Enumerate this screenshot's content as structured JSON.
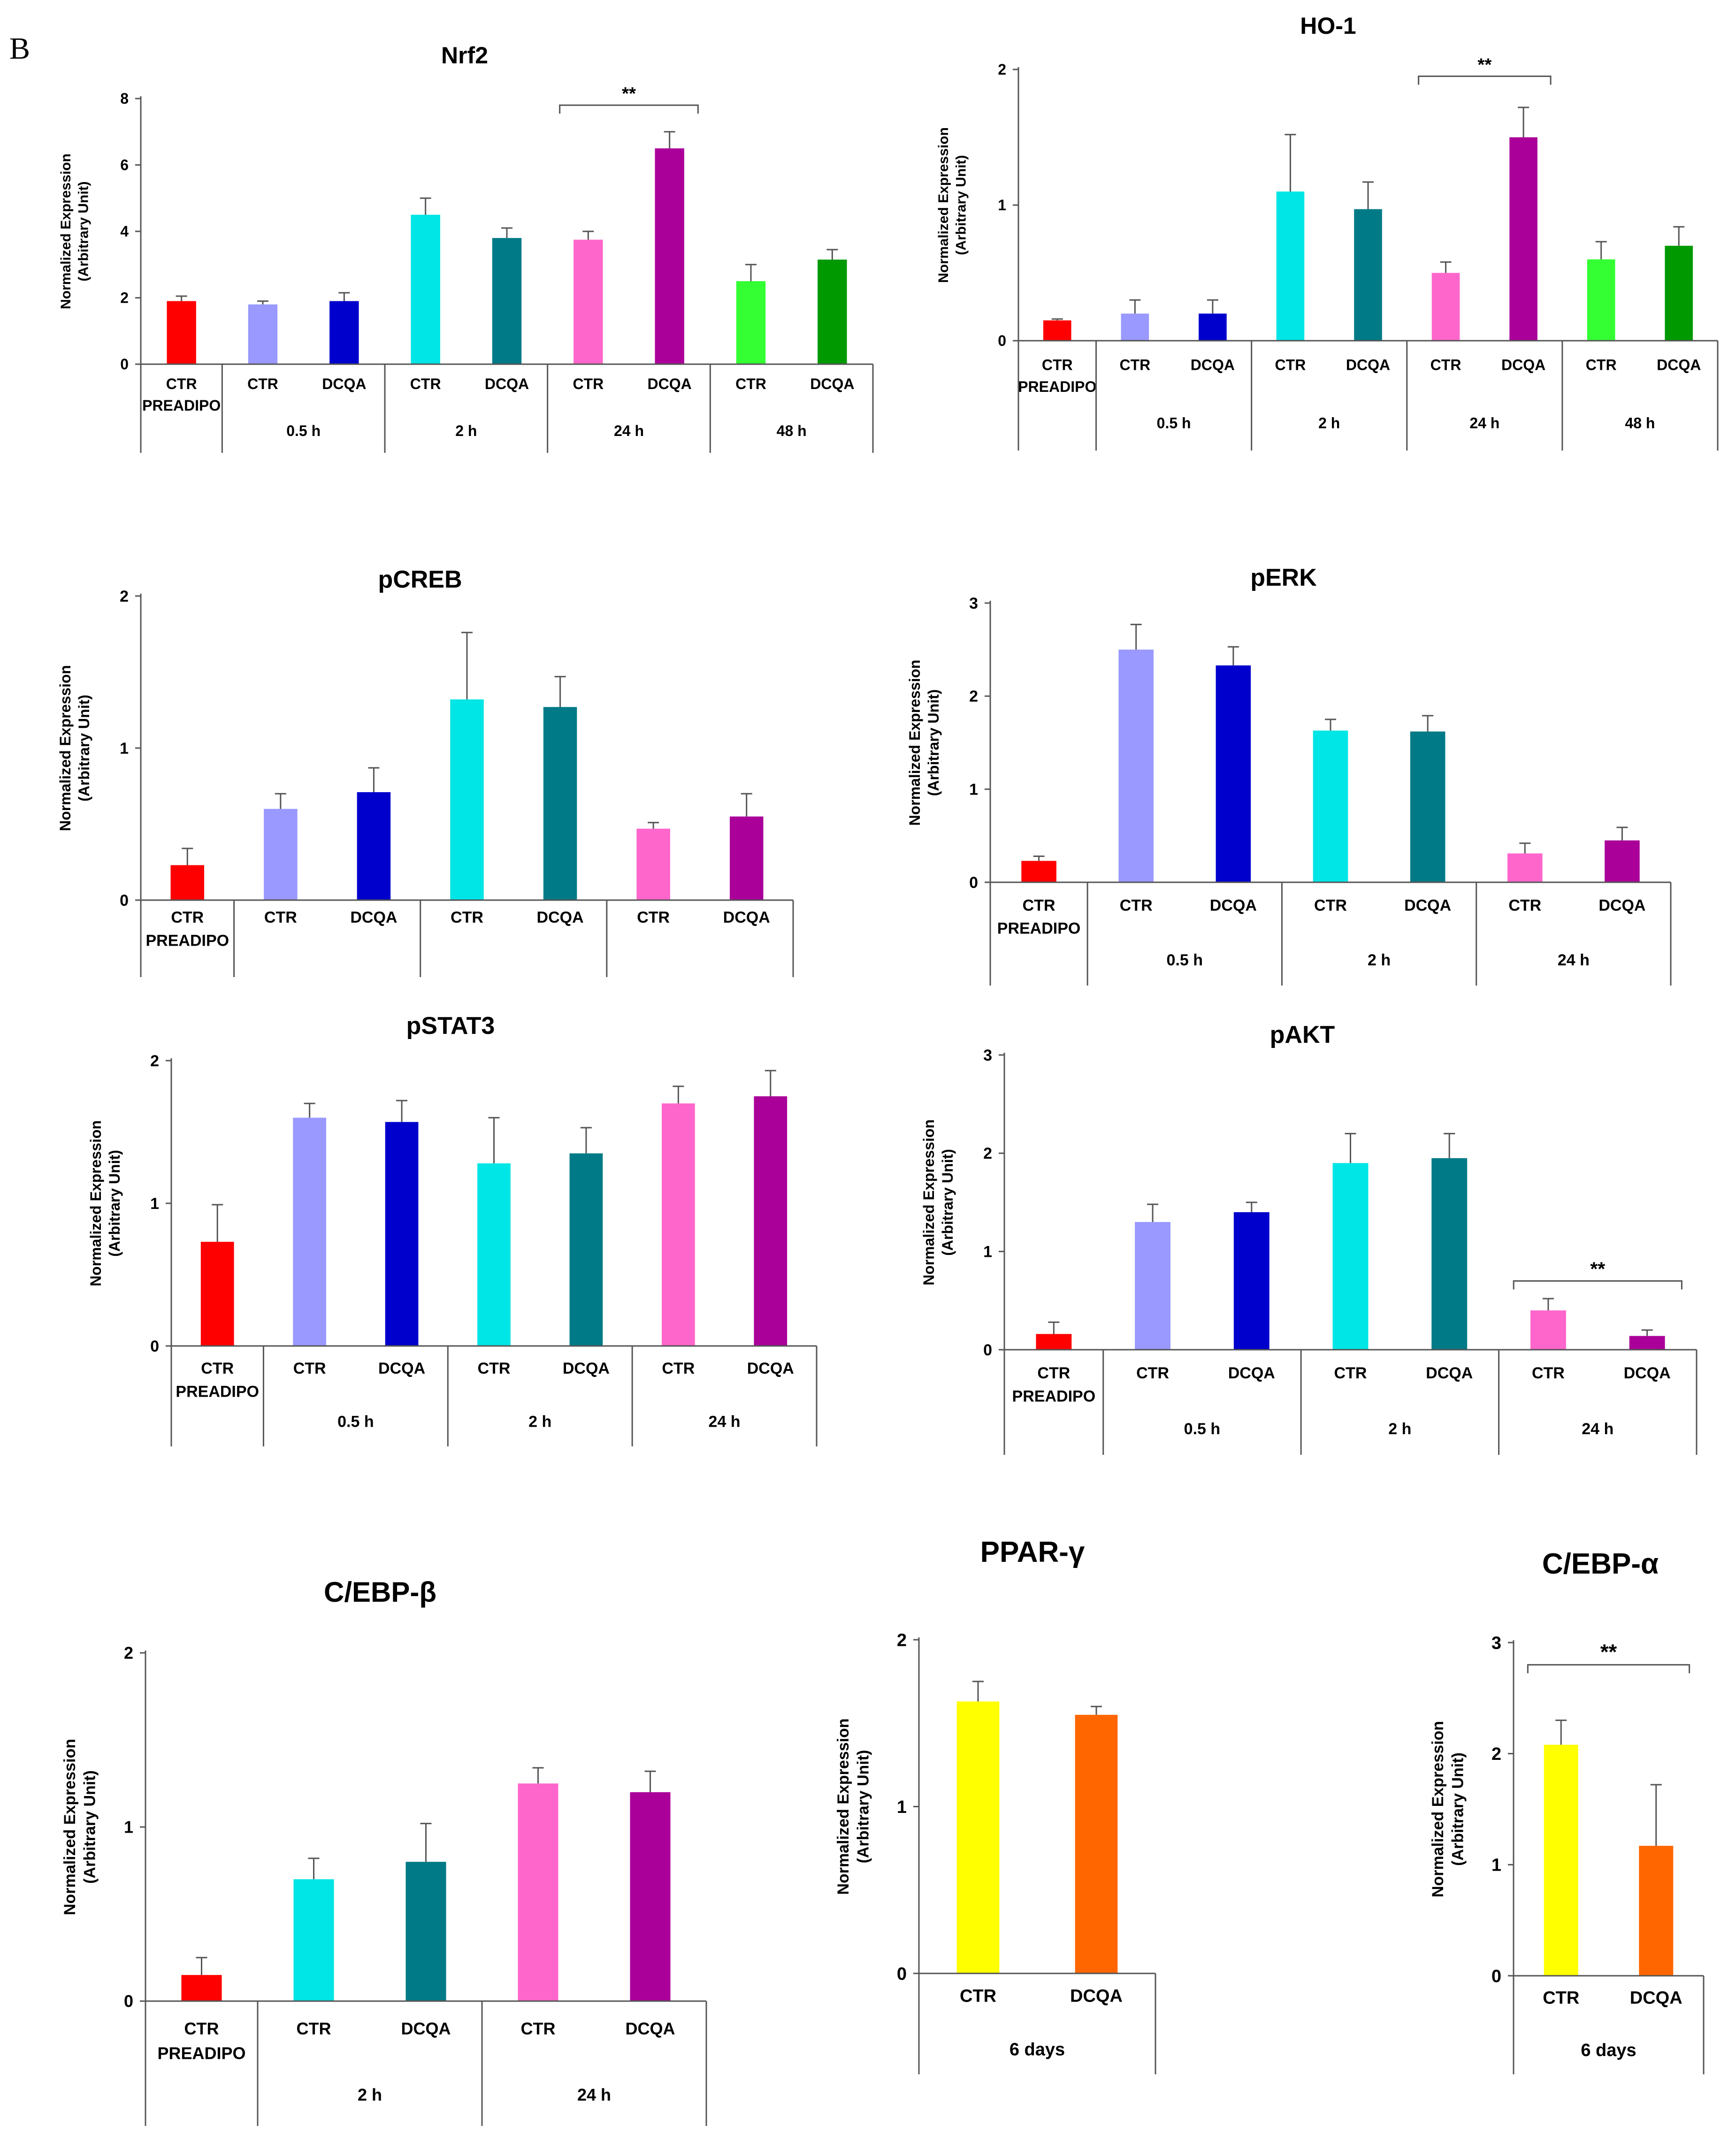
{
  "panel_label": "B",
  "y_axis_label_line1": "Normalized Expression",
  "y_axis_label_line2": "(Arbitrary Unit)",
  "significance_label": "**",
  "colors": {
    "ctr_preadipo": "#ff0000",
    "ctr_05h": "#9999ff",
    "dcqa_05h": "#0000cc",
    "ctr_2h": "#00e5e5",
    "dcqa_2h": "#007a87",
    "ctr_24h": "#ff66cc",
    "dcqa_24h": "#aa0099",
    "ctr_48h": "#33ff33",
    "dcqa_48h": "#009900",
    "ctr_6d": "#ffff00",
    "dcqa_6d": "#ff6600"
  },
  "chart_data": [
    {
      "id": "nrf2",
      "type": "bar",
      "title": "Nrf2",
      "ylim": [
        0,
        8
      ],
      "yticks": [
        0,
        2,
        4,
        6,
        8
      ],
      "bars": [
        {
          "label": "CTR",
          "label2": "PREADIPO",
          "value": 1.9,
          "err": 0.15,
          "color": "ctr_preadipo"
        },
        {
          "label": "CTR",
          "value": 1.8,
          "err": 0.1,
          "color": "ctr_05h"
        },
        {
          "label": "DCQA",
          "value": 1.9,
          "err": 0.25,
          "color": "dcqa_05h"
        },
        {
          "label": "CTR",
          "value": 4.5,
          "err": 0.5,
          "color": "ctr_2h"
        },
        {
          "label": "DCQA",
          "value": 3.8,
          "err": 0.3,
          "color": "dcqa_2h"
        },
        {
          "label": "CTR",
          "value": 3.75,
          "err": 0.25,
          "color": "ctr_24h"
        },
        {
          "label": "DCQA",
          "value": 6.5,
          "err": 0.5,
          "color": "dcqa_24h"
        },
        {
          "label": "CTR",
          "value": 2.5,
          "err": 0.5,
          "color": "ctr_48h"
        },
        {
          "label": "DCQA",
          "value": 3.15,
          "err": 0.3,
          "color": "dcqa_48h"
        }
      ],
      "groups": [
        {
          "label": "",
          "span": [
            0,
            0
          ]
        },
        {
          "label": "0.5 h",
          "span": [
            1,
            2
          ]
        },
        {
          "label": "2 h",
          "span": [
            3,
            4
          ]
        },
        {
          "label": "24 h",
          "span": [
            5,
            6
          ]
        },
        {
          "label": "48 h",
          "span": [
            7,
            8
          ]
        }
      ],
      "significance": [
        {
          "from": 5,
          "to": 6,
          "label": "**",
          "y": 7.8
        }
      ]
    },
    {
      "id": "ho1",
      "type": "bar",
      "title": "HO-1",
      "ylim": [
        0,
        2
      ],
      "yticks": [
        0,
        1,
        2
      ],
      "bars": [
        {
          "label": "CTR",
          "label2": "PREADIPO",
          "value": 0.15,
          "err": 0.01,
          "color": "ctr_preadipo"
        },
        {
          "label": "CTR",
          "value": 0.2,
          "err": 0.1,
          "color": "ctr_05h"
        },
        {
          "label": "DCQA",
          "value": 0.2,
          "err": 0.1,
          "color": "dcqa_05h"
        },
        {
          "label": "CTR",
          "value": 1.1,
          "err": 0.42,
          "color": "ctr_2h"
        },
        {
          "label": "DCQA",
          "value": 0.97,
          "err": 0.2,
          "color": "dcqa_2h"
        },
        {
          "label": "CTR",
          "value": 0.5,
          "err": 0.08,
          "color": "ctr_24h"
        },
        {
          "label": "DCQA",
          "value": 1.5,
          "err": 0.22,
          "color": "dcqa_24h"
        },
        {
          "label": "CTR",
          "value": 0.6,
          "err": 0.13,
          "color": "ctr_48h"
        },
        {
          "label": "DCQA",
          "value": 0.7,
          "err": 0.14,
          "color": "dcqa_48h"
        }
      ],
      "groups": [
        {
          "label": "",
          "span": [
            0,
            0
          ]
        },
        {
          "label": "0.5 h",
          "span": [
            1,
            2
          ]
        },
        {
          "label": "2 h",
          "span": [
            3,
            4
          ]
        },
        {
          "label": "24 h",
          "span": [
            5,
            6
          ]
        },
        {
          "label": "48 h",
          "span": [
            7,
            8
          ]
        }
      ],
      "significance": [
        {
          "from": 5,
          "to": 6,
          "label": "**",
          "y": 1.95
        }
      ]
    },
    {
      "id": "pcreb",
      "type": "bar",
      "title": "pCREB",
      "ylim": [
        0,
        2
      ],
      "yticks": [
        0,
        1,
        2
      ],
      "bars": [
        {
          "label": "CTR",
          "label2": "PREADIPO",
          "value": 0.23,
          "err": 0.11,
          "color": "ctr_preadipo"
        },
        {
          "label": "CTR",
          "value": 0.6,
          "err": 0.1,
          "color": "ctr_05h"
        },
        {
          "label": "DCQA",
          "value": 0.71,
          "err": 0.16,
          "color": "dcqa_05h"
        },
        {
          "label": "CTR",
          "value": 1.32,
          "err": 0.44,
          "color": "ctr_2h"
        },
        {
          "label": "DCQA",
          "value": 1.27,
          "err": 0.2,
          "color": "dcqa_2h"
        },
        {
          "label": "CTR",
          "value": 0.47,
          "err": 0.04,
          "color": "ctr_24h"
        },
        {
          "label": "DCQA",
          "value": 0.55,
          "err": 0.15,
          "color": "dcqa_24h"
        }
      ],
      "groups": [
        {
          "label": "",
          "span": [
            0,
            0
          ]
        },
        {
          "label": "",
          "span": [
            1,
            2
          ]
        },
        {
          "label": "",
          "span": [
            3,
            4
          ]
        },
        {
          "label": "",
          "span": [
            5,
            6
          ]
        }
      ],
      "significance": []
    },
    {
      "id": "perk",
      "type": "bar",
      "title": "pERK",
      "ylim": [
        0,
        3
      ],
      "yticks": [
        0,
        1,
        2,
        3
      ],
      "bars": [
        {
          "label": "CTR",
          "label2": "PREADIPO",
          "value": 0.23,
          "err": 0.05,
          "color": "ctr_preadipo"
        },
        {
          "label": "CTR",
          "value": 2.5,
          "err": 0.27,
          "color": "ctr_05h"
        },
        {
          "label": "DCQA",
          "value": 2.33,
          "err": 0.2,
          "color": "dcqa_05h"
        },
        {
          "label": "CTR",
          "value": 1.63,
          "err": 0.12,
          "color": "ctr_2h"
        },
        {
          "label": "DCQA",
          "value": 1.62,
          "err": 0.17,
          "color": "dcqa_2h"
        },
        {
          "label": "CTR",
          "value": 0.31,
          "err": 0.11,
          "color": "ctr_24h"
        },
        {
          "label": "DCQA",
          "value": 0.45,
          "err": 0.14,
          "color": "dcqa_24h"
        }
      ],
      "groups": [
        {
          "label": "",
          "span": [
            0,
            0
          ]
        },
        {
          "label": "0.5 h",
          "span": [
            1,
            2
          ]
        },
        {
          "label": "2 h",
          "span": [
            3,
            4
          ]
        },
        {
          "label": "24 h",
          "span": [
            5,
            6
          ]
        }
      ],
      "significance": []
    },
    {
      "id": "pstat3",
      "type": "bar",
      "title": "pSTAT3",
      "ylim": [
        0,
        2
      ],
      "yticks": [
        0,
        1,
        2
      ],
      "bars": [
        {
          "label": "CTR",
          "label2": "PREADIPO",
          "value": 0.73,
          "err": 0.26,
          "color": "ctr_preadipo"
        },
        {
          "label": "CTR",
          "value": 1.6,
          "err": 0.1,
          "color": "ctr_05h"
        },
        {
          "label": "DCQA",
          "value": 1.57,
          "err": 0.15,
          "color": "dcqa_05h"
        },
        {
          "label": "CTR",
          "value": 1.28,
          "err": 0.32,
          "color": "ctr_2h"
        },
        {
          "label": "DCQA",
          "value": 1.35,
          "err": 0.18,
          "color": "dcqa_2h"
        },
        {
          "label": "CTR",
          "value": 1.7,
          "err": 0.12,
          "color": "ctr_24h"
        },
        {
          "label": "DCQA",
          "value": 1.75,
          "err": 0.18,
          "color": "dcqa_24h"
        }
      ],
      "groups": [
        {
          "label": "",
          "span": [
            0,
            0
          ]
        },
        {
          "label": "0.5 h",
          "span": [
            1,
            2
          ]
        },
        {
          "label": "2 h",
          "span": [
            3,
            4
          ]
        },
        {
          "label": "24 h",
          "span": [
            5,
            6
          ]
        }
      ],
      "significance": []
    },
    {
      "id": "pakt",
      "type": "bar",
      "title": "pAKT",
      "ylim": [
        0,
        3
      ],
      "yticks": [
        0,
        1,
        2,
        3
      ],
      "bars": [
        {
          "label": "CTR",
          "label2": "PREADIPO",
          "value": 0.16,
          "err": 0.12,
          "color": "ctr_preadipo"
        },
        {
          "label": "CTR",
          "value": 1.3,
          "err": 0.18,
          "color": "ctr_05h"
        },
        {
          "label": "DCQA",
          "value": 1.4,
          "err": 0.1,
          "color": "dcqa_05h"
        },
        {
          "label": "CTR",
          "value": 1.9,
          "err": 0.3,
          "color": "ctr_2h"
        },
        {
          "label": "DCQA",
          "value": 1.95,
          "err": 0.25,
          "color": "dcqa_2h"
        },
        {
          "label": "CTR",
          "value": 0.4,
          "err": 0.12,
          "color": "ctr_24h"
        },
        {
          "label": "DCQA",
          "value": 0.14,
          "err": 0.06,
          "color": "dcqa_24h"
        }
      ],
      "groups": [
        {
          "label": "",
          "span": [
            0,
            0
          ]
        },
        {
          "label": "0.5 h",
          "span": [
            1,
            2
          ]
        },
        {
          "label": "2 h",
          "span": [
            3,
            4
          ]
        },
        {
          "label": "24 h",
          "span": [
            5,
            6
          ]
        }
      ],
      "significance": [
        {
          "from": 5,
          "to": 6,
          "label": "**",
          "y": 0.7
        }
      ]
    },
    {
      "id": "cebpb",
      "type": "bar",
      "title": "C/EBP-β",
      "ylim": [
        0,
        2
      ],
      "yticks": [
        0,
        1,
        2
      ],
      "bars": [
        {
          "label": "CTR",
          "label2": "PREADIPO",
          "value": 0.15,
          "err": 0.1,
          "color": "ctr_preadipo"
        },
        {
          "label": "CTR",
          "value": 0.7,
          "err": 0.12,
          "color": "ctr_2h"
        },
        {
          "label": "DCQA",
          "value": 0.8,
          "err": 0.22,
          "color": "dcqa_2h"
        },
        {
          "label": "CTR",
          "value": 1.25,
          "err": 0.09,
          "color": "ctr_24h"
        },
        {
          "label": "DCQA",
          "value": 1.2,
          "err": 0.12,
          "color": "dcqa_24h"
        }
      ],
      "groups": [
        {
          "label": "",
          "span": [
            0,
            0
          ]
        },
        {
          "label": "2 h",
          "span": [
            1,
            2
          ]
        },
        {
          "label": "24 h",
          "span": [
            3,
            4
          ]
        }
      ],
      "significance": []
    },
    {
      "id": "pparg",
      "type": "bar",
      "title": "PPAR-γ",
      "ylim": [
        0,
        2
      ],
      "yticks": [
        0,
        1,
        2
      ],
      "bars": [
        {
          "label": "CTR",
          "value": 1.63,
          "err": 0.12,
          "color": "ctr_6d"
        },
        {
          "label": "DCQA",
          "value": 1.55,
          "err": 0.05,
          "color": "dcqa_6d"
        }
      ],
      "groups": [
        {
          "label": "6 days",
          "span": [
            0,
            1
          ]
        }
      ],
      "significance": []
    },
    {
      "id": "cebpa",
      "type": "bar",
      "title": "C/EBP-α",
      "ylim": [
        0,
        3
      ],
      "yticks": [
        0,
        1,
        2,
        3
      ],
      "bars": [
        {
          "label": "CTR",
          "value": 2.08,
          "err": 0.22,
          "color": "ctr_6d"
        },
        {
          "label": "DCQA",
          "value": 1.17,
          "err": 0.55,
          "color": "dcqa_6d"
        }
      ],
      "groups": [
        {
          "label": "6 days",
          "span": [
            0,
            1
          ]
        }
      ],
      "significance": [
        {
          "from": 0,
          "to": 1,
          "label": "**",
          "y": 2.8
        }
      ]
    }
  ]
}
